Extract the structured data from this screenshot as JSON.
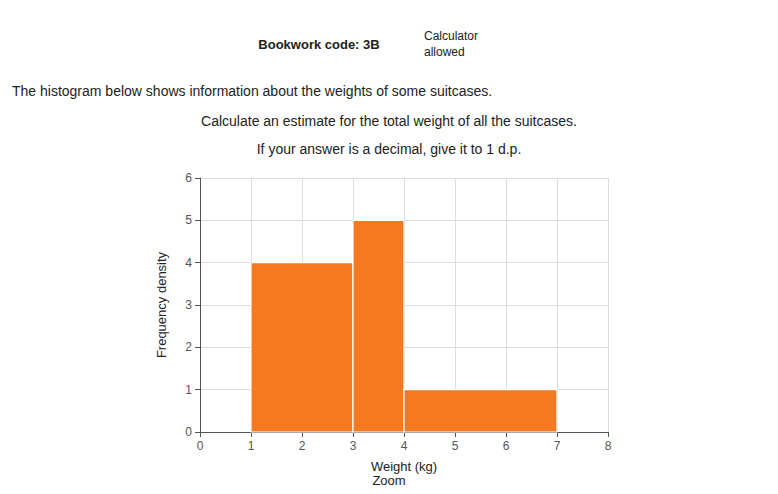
{
  "chart_data": {
    "type": "histogram",
    "annotations": [
      "Bookwork code: 3B",
      "Calculator",
      "allowed",
      "The histogram below shows information about the weights of some suitcases.",
      "Calculate an estimate for the total weight of all the suitcases.",
      "If your answer is a decimal, give it to 1 d.p.",
      "Zoom"
    ],
    "xlabel": "Weight (kg)",
    "ylabel": "Frequency density",
    "bins": [
      1,
      3,
      4,
      7
    ],
    "values": [
      4,
      5,
      1
    ],
    "color": "#F47920",
    "xlim": [
      0,
      8
    ],
    "ylim": [
      0,
      6
    ],
    "xticks": [
      0,
      1,
      2,
      3,
      4,
      5,
      6,
      7,
      8
    ],
    "yticks": [
      0,
      1,
      2,
      3,
      4,
      5,
      6
    ],
    "grid": true
  }
}
